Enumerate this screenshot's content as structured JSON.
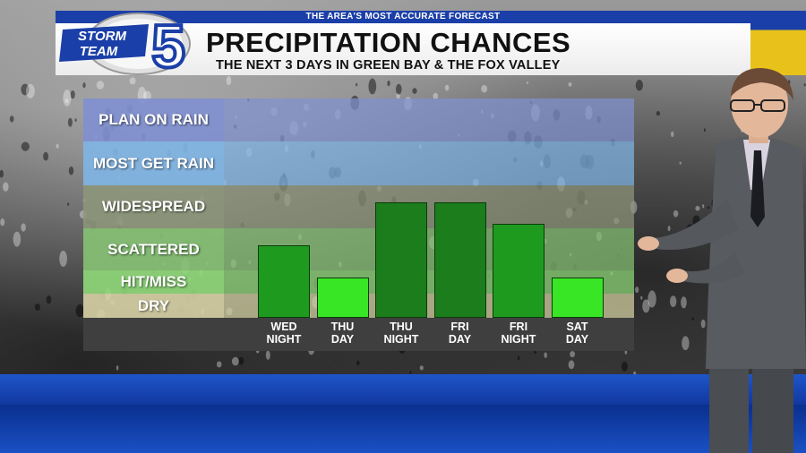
{
  "header": {
    "tagline": "THE AREA'S MOST ACCURATE FORECAST",
    "title": "PRECIPITATION CHANCES",
    "subtitle": "THE NEXT 3 DAYS IN GREEN BAY & THE FOX VALLEY"
  },
  "logo": {
    "line1": "STORM",
    "line2": "TEAM",
    "number": "5"
  },
  "chart_data": {
    "type": "bar",
    "levels": [
      "DRY",
      "HIT/MISS",
      "SCATTERED",
      "WIDESPREAD",
      "MOST GET RAIN",
      "PLAN ON RAIN"
    ],
    "categories": [
      {
        "line1": "WED",
        "line2": "NIGHT"
      },
      {
        "line1": "THU",
        "line2": "DAY"
      },
      {
        "line1": "THU",
        "line2": "NIGHT"
      },
      {
        "line1": "FRI",
        "line2": "DAY"
      },
      {
        "line1": "FRI",
        "line2": "NIGHT"
      },
      {
        "line1": "SAT",
        "line2": "DAY"
      }
    ],
    "values": [
      2.6,
      1.7,
      3.6,
      3.6,
      3.1,
      1.7
    ],
    "colors": [
      "#1e9b1e",
      "#39e626",
      "#1b7d1b",
      "#1b7d1b",
      "#1e9b1e",
      "#39e626"
    ]
  }
}
